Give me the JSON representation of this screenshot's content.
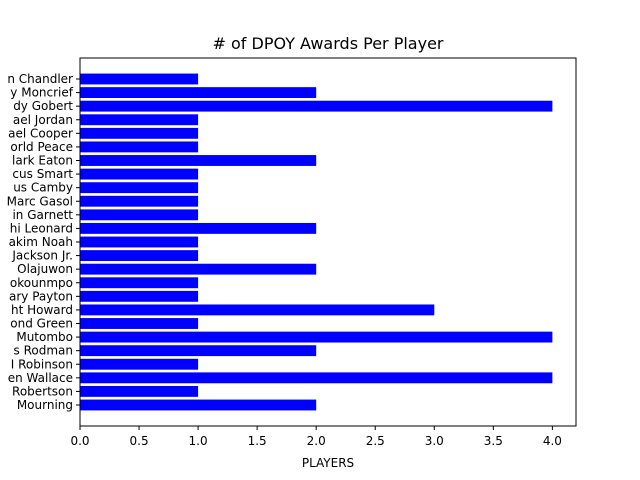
{
  "chart_data": {
    "type": "bar",
    "orientation": "horizontal",
    "title": "# of DPOY Awards Per Player",
    "xlabel": "PLAYERS",
    "ylabel": "",
    "xlim": [
      0,
      4.2
    ],
    "xticks": [
      0.0,
      0.5,
      1.0,
      1.5,
      2.0,
      2.5,
      3.0,
      3.5,
      4.0
    ],
    "xtick_labels": [
      "0.0",
      "0.5",
      "1.0",
      "1.5",
      "2.0",
      "2.5",
      "3.0",
      "3.5",
      "4.0"
    ],
    "grid": false,
    "bar_color": "#0000ff",
    "categories_top_to_bottom": [
      "n Chandler",
      "y Moncrief",
      "dy Gobert",
      "ael Jordan",
      "ael Cooper",
      "orld Peace",
      "lark Eaton",
      "cus Smart",
      "us Camby",
      "Marc Gasol",
      "in Garnett",
      "hi Leonard",
      "akim Noah",
      "Jackson Jr.",
      "Olajuwon",
      "okounmpo",
      "ary Payton",
      "ht Howard",
      "ond Green",
      "Mutombo",
      "s Rodman",
      "I Robinson",
      "en Wallace",
      "Robertson",
      "Mourning"
    ],
    "values_top_to_bottom": [
      1,
      2,
      4,
      1,
      1,
      1,
      2,
      1,
      1,
      1,
      1,
      2,
      1,
      1,
      2,
      1,
      1,
      3,
      1,
      4,
      2,
      1,
      4,
      1,
      2
    ]
  }
}
